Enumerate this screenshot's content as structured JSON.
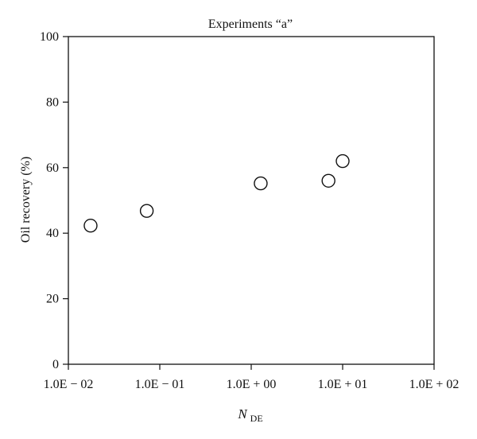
{
  "chart_data": {
    "type": "scatter",
    "title": "Experiments “a”",
    "xlabel_main": "N",
    "xlabel_sub": "DE",
    "ylabel": "Oil recovery (%)",
    "x_scale": "log",
    "xlim": [
      0.01,
      100
    ],
    "ylim": [
      0,
      100
    ],
    "x_ticks": [
      0.01,
      0.1,
      1,
      10,
      100
    ],
    "x_tick_labels": [
      "1.0E − 02",
      "1.0E − 01",
      "1.0E + 00",
      "1.0E + 01",
      "1.0E + 02"
    ],
    "y_ticks": [
      0,
      20,
      40,
      60,
      80,
      100
    ],
    "y_tick_labels": [
      "0",
      "20",
      "40",
      "60",
      "80",
      "100"
    ],
    "grid": false,
    "legend": "none",
    "points": [
      {
        "x": 0.0175,
        "y": 42.3
      },
      {
        "x": 0.072,
        "y": 46.8
      },
      {
        "x": 1.27,
        "y": 55.2
      },
      {
        "x": 7.0,
        "y": 56.0
      },
      {
        "x": 10.0,
        "y": 62.0
      }
    ]
  }
}
